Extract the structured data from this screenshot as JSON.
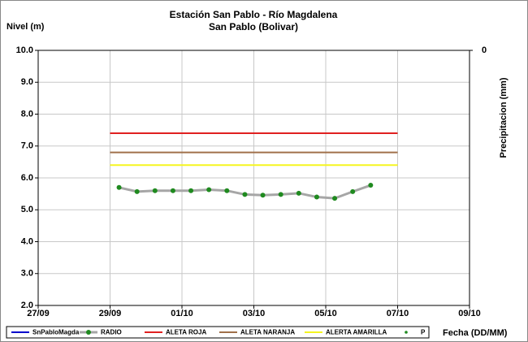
{
  "chart_data": {
    "type": "line",
    "title": "Estación San Pablo - Río Magdalena",
    "subtitle": "San Pablo (Bolivar)",
    "ylabel": "Nivel (m)",
    "y2label": "Precipitacion (mm)",
    "xlabel": "Fecha (DD/MM)",
    "xlim": [
      0,
      12
    ],
    "xticks": [
      {
        "value": 0,
        "label": "27/09"
      },
      {
        "value": 2,
        "label": "29/09"
      },
      {
        "value": 4,
        "label": "01/10"
      },
      {
        "value": 6,
        "label": "03/10"
      },
      {
        "value": 8,
        "label": "05/10"
      },
      {
        "value": 10,
        "label": "07/10"
      },
      {
        "value": 12,
        "label": "09/10"
      }
    ],
    "ylim": [
      2,
      10
    ],
    "yticks": [
      {
        "value": 2,
        "label": "2.0"
      },
      {
        "value": 3,
        "label": "3.0"
      },
      {
        "value": 4,
        "label": "4.0"
      },
      {
        "value": 5,
        "label": "5.0"
      },
      {
        "value": 6,
        "label": "6.0"
      },
      {
        "value": 7,
        "label": "7.0"
      },
      {
        "value": 8,
        "label": "8.0"
      },
      {
        "value": 9,
        "label": "9.0"
      },
      {
        "value": 10,
        "label": "10.0"
      }
    ],
    "y2ticks": [
      0
    ],
    "y2_inverted": true,
    "grid": true,
    "legend": "bottom",
    "series": [
      {
        "name": "SnPabloMagda",
        "color": "#0000cc",
        "x": [],
        "values": []
      },
      {
        "name": "RADIO",
        "color": "#a6a6a6",
        "marker_color": "#1f8a1f",
        "x": [
          2.25,
          2.75,
          3.25,
          3.75,
          4.25,
          4.75,
          5.25,
          5.75,
          6.25,
          6.75,
          7.25,
          7.75,
          8.25,
          8.75,
          9.25
        ],
        "values": [
          5.7,
          5.57,
          5.6,
          5.6,
          5.6,
          5.63,
          5.6,
          5.48,
          5.46,
          5.48,
          5.52,
          5.4,
          5.36,
          5.57,
          5.77
        ]
      },
      {
        "name": "ALETA ROJA",
        "color": "#e02020",
        "x": [
          2,
          10
        ],
        "values": [
          7.4,
          7.4
        ]
      },
      {
        "name": "ALETA NARANJA",
        "color": "#a0704a",
        "x": [
          2,
          10
        ],
        "values": [
          6.8,
          6.8
        ]
      },
      {
        "name": "ALERTA AMARILLA",
        "color": "#f5f520",
        "x": [
          2,
          10
        ],
        "values": [
          6.4,
          6.4
        ]
      },
      {
        "name": "P",
        "color": "#1f8a1f",
        "x": [],
        "values": []
      }
    ]
  }
}
